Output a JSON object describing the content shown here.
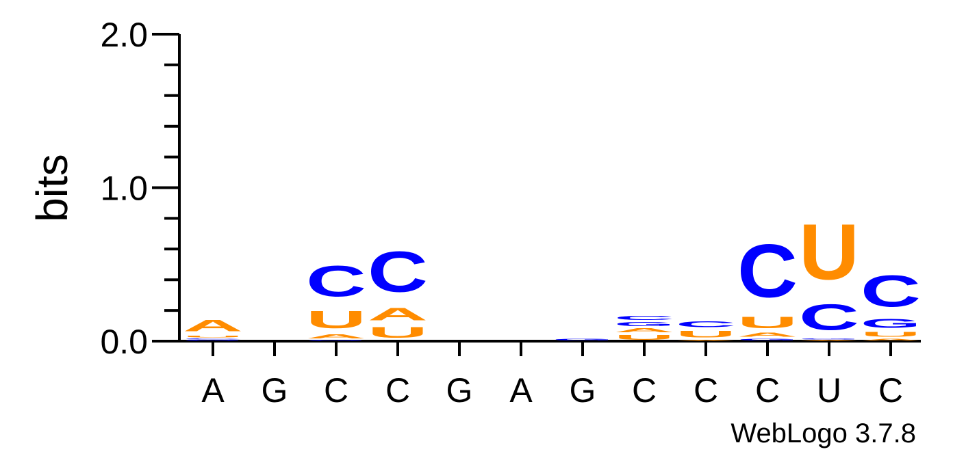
{
  "chart_data": {
    "type": "sequence-logo",
    "ylabel": "bits",
    "ylim": [
      0,
      2
    ],
    "y_ticks": [
      "0.0",
      "1.0",
      "2.0"
    ],
    "colors": {
      "A": "#ff8c00",
      "U": "#ff8c00",
      "C": "#0000ff",
      "G": "#0000ff"
    },
    "credit": "WebLogo 3.7.8",
    "positions": [
      {
        "label": "A",
        "stack": [
          {
            "letter": "G",
            "bits": 0.01
          },
          {
            "letter": "C",
            "bits": 0.01
          },
          {
            "letter": "U",
            "bits": 0.02
          },
          {
            "letter": "A",
            "bits": 0.12
          }
        ]
      },
      {
        "label": "G",
        "stack": []
      },
      {
        "label": "C",
        "stack": [
          {
            "letter": "G",
            "bits": 0.01
          },
          {
            "letter": "A",
            "bits": 0.04
          },
          {
            "letter": "U",
            "bits": 0.18
          },
          {
            "letter": "C",
            "bits": 0.32
          }
        ]
      },
      {
        "label": "C",
        "stack": [
          {
            "letter": "U",
            "bits": 0.11
          },
          {
            "letter": "A",
            "bits": 0.13
          },
          {
            "letter": "C",
            "bits": 0.42
          }
        ]
      },
      {
        "label": "G",
        "stack": []
      },
      {
        "label": "A",
        "stack": []
      },
      {
        "label": "G",
        "stack": [
          {
            "letter": "G",
            "bits": 0.02
          }
        ]
      },
      {
        "label": "C",
        "stack": [
          {
            "letter": "U",
            "bits": 0.05
          },
          {
            "letter": "A",
            "bits": 0.04
          },
          {
            "letter": "G",
            "bits": 0.04
          },
          {
            "letter": "C",
            "bits": 0.04
          }
        ]
      },
      {
        "label": "C",
        "stack": [
          {
            "letter": "A",
            "bits": 0.01
          },
          {
            "letter": "U",
            "bits": 0.07
          },
          {
            "letter": "C",
            "bits": 0.06
          }
        ]
      },
      {
        "label": "C",
        "stack": [
          {
            "letter": "G",
            "bits": 0.02
          },
          {
            "letter": "A",
            "bits": 0.04
          },
          {
            "letter": "U",
            "bits": 0.12
          },
          {
            "letter": "C",
            "bits": 0.55
          }
        ]
      },
      {
        "label": "U",
        "stack": [
          {
            "letter": "A",
            "bits": 0.01
          },
          {
            "letter": "G",
            "bits": 0.01
          },
          {
            "letter": "C",
            "bits": 0.27
          },
          {
            "letter": "U",
            "bits": 0.58
          }
        ]
      },
      {
        "label": "C",
        "stack": [
          {
            "letter": "A",
            "bits": 0.02
          },
          {
            "letter": "U",
            "bits": 0.05
          },
          {
            "letter": "G",
            "bits": 0.09
          },
          {
            "letter": "C",
            "bits": 0.33
          }
        ]
      }
    ]
  }
}
